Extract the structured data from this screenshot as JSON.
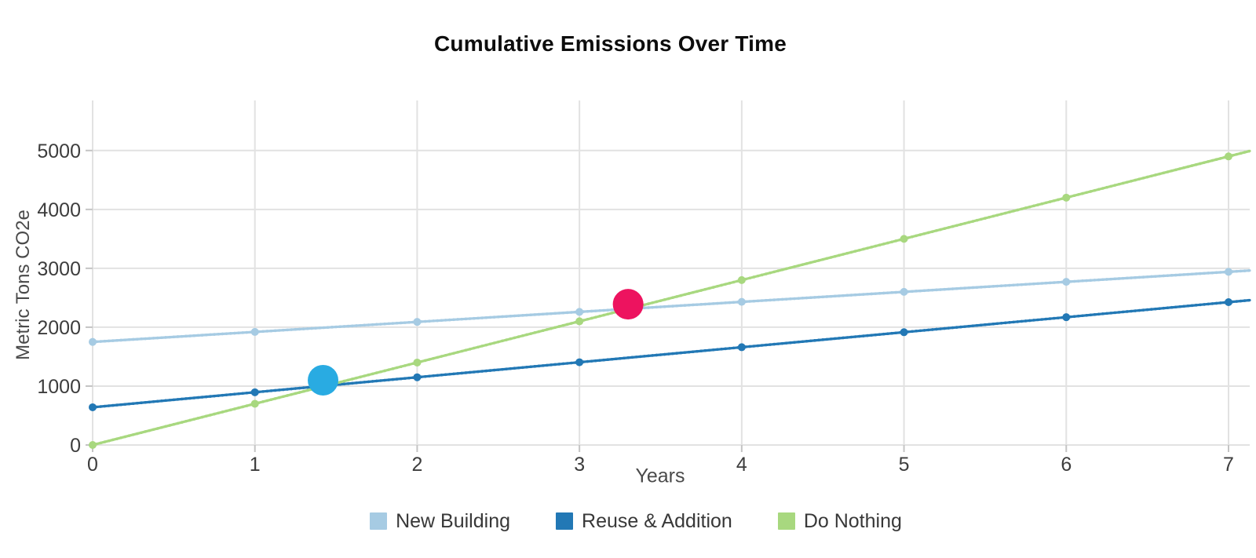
{
  "chart_data": {
    "type": "line",
    "title": "Cumulative Emissions Over Time",
    "xlabel": "Years",
    "ylabel": "Metric Tons CO2e",
    "x": [
      0,
      1,
      2,
      3,
      4,
      5,
      6,
      7
    ],
    "xticks": [
      0,
      1,
      2,
      3,
      4,
      5,
      6,
      7
    ],
    "yticks": [
      0,
      1000,
      2000,
      3000,
      4000,
      5000
    ],
    "xlim": [
      0,
      7
    ],
    "ylim": [
      0,
      5850
    ],
    "grid": true,
    "legend_position": "bottom",
    "series": [
      {
        "name": "New Building",
        "color": "#a6cbe3",
        "values": [
          1750,
          1920,
          2090,
          2260,
          2430,
          2600,
          2770,
          2940
        ]
      },
      {
        "name": "Reuse & Addition",
        "color": "#2278b5",
        "values": [
          640,
          895,
          1150,
          1405,
          1660,
          1915,
          2170,
          2425
        ]
      },
      {
        "name": "Do Nothing",
        "color": "#a8d87f",
        "values": [
          0,
          700,
          1400,
          2100,
          2800,
          3500,
          4200,
          4900
        ]
      }
    ],
    "annotations": [
      {
        "id": "reuse-addition-crossover",
        "x": 1.42,
        "y": 1100,
        "color": "#29abe2"
      },
      {
        "id": "new-building-crossover",
        "x": 3.3,
        "y": 2390,
        "color": "#ed135f"
      }
    ]
  },
  "colors": {
    "background": "#ffffff",
    "gridline": "#e2e2e2",
    "tick": "#c4c4c4",
    "tick_label": "#3d3d3d",
    "axis_title": "#4a4a4a",
    "title": "#0d0d0d",
    "legend_text": "#383838"
  }
}
